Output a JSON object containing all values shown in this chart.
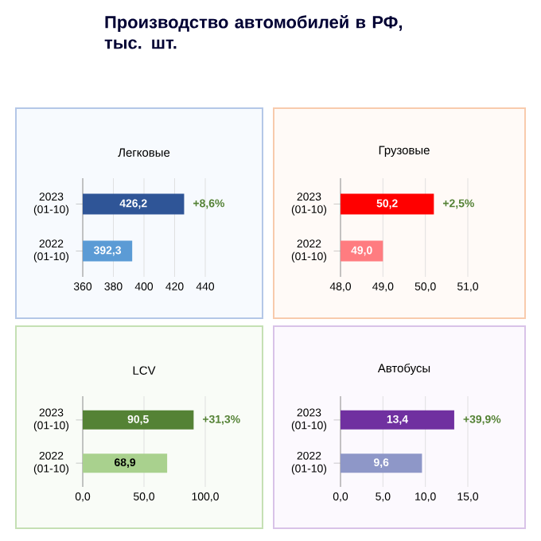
{
  "chart_data": [
    {
      "type": "other",
      "title": "Производство автомобилей в РФ, тыс. шт."
    },
    {
      "type": "bar",
      "orientation": "horizontal",
      "title": "Легковые",
      "categories": [
        "2023 (01-10)",
        "2022 (01-10)"
      ],
      "values": [
        426.2,
        392.3
      ],
      "colors": [
        "#2f5597",
        "#5b9bd5"
      ],
      "value_labels": [
        "426,2",
        "392,3"
      ],
      "xlim": [
        360,
        440
      ],
      "xticks": [
        360,
        380,
        400,
        420,
        440
      ],
      "grid": "x",
      "annotations": [
        {
          "text": "+8,6%",
          "x": 426.2,
          "y": "2023 (01-10)"
        }
      ]
    },
    {
      "type": "bar",
      "orientation": "horizontal",
      "title": "Грузовые",
      "categories": [
        "2023 (01-10)",
        "2022 (01-10)"
      ],
      "values": [
        50.2,
        49.0
      ],
      "colors": [
        "#ff0000",
        "#ff7c80"
      ],
      "value_labels": [
        "50,2",
        "49,0"
      ],
      "xlim": [
        48,
        51
      ],
      "xticks": [
        {
          "value": 48,
          "label": "48,0"
        },
        {
          "value": 49,
          "label": "49,0"
        },
        {
          "value": 50,
          "label": "50,0"
        },
        {
          "value": 51,
          "label": "51,0"
        }
      ],
      "grid": "x",
      "annotations": [
        {
          "text": "+2,5%",
          "x": 50.2,
          "y": "2023 (01-10)"
        }
      ]
    },
    {
      "type": "bar",
      "orientation": "horizontal",
      "title": "LCV",
      "categories": [
        "2023 (01-10)",
        "2022 (01-10)"
      ],
      "values": [
        90.5,
        68.9
      ],
      "colors": [
        "#548235",
        "#a9d18e"
      ],
      "value_labels": [
        "90,5",
        "68,9"
      ],
      "xlim": [
        0,
        100
      ],
      "xticks": [
        {
          "value": 0,
          "label": "0,0"
        },
        {
          "value": 50,
          "label": "50,0"
        },
        {
          "value": 100,
          "label": "100,0"
        }
      ],
      "grid": "x",
      "annotations": [
        {
          "text": "+31,3%",
          "x": 90.5,
          "y": "2023 (01-10)"
        }
      ]
    },
    {
      "type": "bar",
      "orientation": "horizontal",
      "title": "Автобусы",
      "categories": [
        "2023 (01-10)",
        "2022 (01-10)"
      ],
      "values": [
        13.4,
        9.6
      ],
      "colors": [
        "#7030a0",
        "#8e97c8"
      ],
      "value_labels": [
        "13,4",
        "9,6"
      ],
      "xlim": [
        0,
        15
      ],
      "xticks": [
        {
          "value": 0,
          "label": "0,0"
        },
        {
          "value": 5,
          "label": "5,0"
        },
        {
          "value": 10,
          "label": "10,0"
        },
        {
          "value": 15,
          "label": "15,0"
        }
      ],
      "grid": "x",
      "annotations": [
        {
          "text": "+39,9%",
          "x": 13.4,
          "y": "2023 (01-10)"
        }
      ]
    }
  ]
}
